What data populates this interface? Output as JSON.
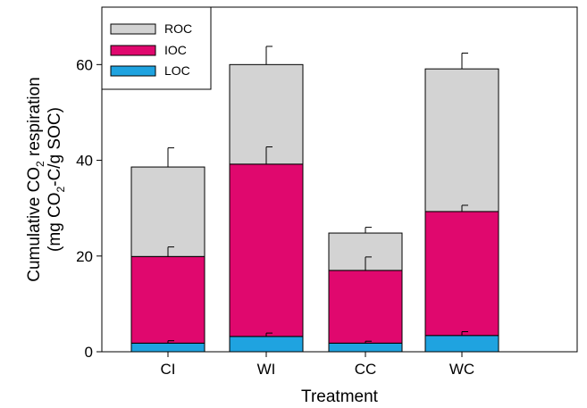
{
  "chart_data": {
    "type": "bar",
    "stacked": true,
    "categories": [
      "CI",
      "WI",
      "CC",
      "WC"
    ],
    "series": [
      {
        "name": "LOC",
        "color": "#1fa3e0",
        "values": [
          1.8,
          3.2,
          1.8,
          3.4
        ],
        "error": [
          0.5,
          0.7,
          0.4,
          0.8
        ]
      },
      {
        "name": "IOC",
        "color": "#e0086e",
        "values": [
          18.1,
          36.0,
          15.2,
          25.9
        ],
        "error": [
          2.0,
          3.6,
          2.8,
          1.3
        ]
      },
      {
        "name": "ROC",
        "color": "#d3d3d3",
        "values": [
          18.7,
          20.8,
          7.8,
          29.8
        ],
        "error": [
          4.0,
          3.8,
          1.2,
          3.3
        ]
      }
    ],
    "xlabel": "Treatment",
    "ylabel": {
      "line1_a": "Cumulative CO",
      "line1_sub": "2",
      "line1_b": " respiration",
      "line2_a": "(mg CO",
      "line2_sub": "2",
      "line2_b": "-C/g  SOC)"
    },
    "ylim": [
      0,
      72
    ],
    "yticks": [
      0,
      20,
      40,
      60
    ],
    "grid": false,
    "legend_position": "top-left",
    "legend_order": [
      "ROC",
      "IOC",
      "LOC"
    ]
  }
}
